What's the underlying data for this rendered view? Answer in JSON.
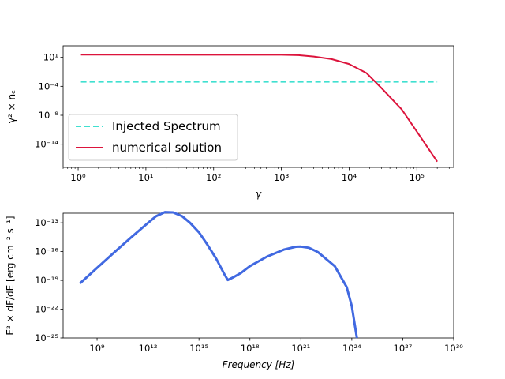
{
  "chart_data": [
    {
      "type": "line",
      "xscale": "log",
      "yscale": "log",
      "xlabel": "γ",
      "ylabel": "γ² × nₑ",
      "xlim": [
        0.6,
        350000
      ],
      "ylim": [
        1e-18,
        1000.0
      ],
      "xticks": [
        {
          "value": 1,
          "label": "10⁰"
        },
        {
          "value": 10,
          "label": "10¹"
        },
        {
          "value": 100,
          "label": "10²"
        },
        {
          "value": 1000,
          "label": "10³"
        },
        {
          "value": 10000,
          "label": "10⁴"
        },
        {
          "value": 100000,
          "label": "10⁵"
        }
      ],
      "yticks": [
        {
          "value": 10,
          "label": "10¹"
        },
        {
          "value": 0.0001,
          "label": "10⁻⁴"
        },
        {
          "value": 1e-09,
          "label": "10⁻⁹"
        },
        {
          "value": 1e-14,
          "label": "10⁻¹⁴"
        }
      ],
      "legend_position": "lower-left",
      "series": [
        {
          "name": "Injected Spectrum",
          "color": "#40e0d0",
          "style": "dashed",
          "x": [
            1.1,
            200000
          ],
          "y": [
            0.0006,
            0.0006
          ]
        },
        {
          "name": "numerical solution",
          "color": "#dc143c",
          "style": "solid",
          "x": [
            1.1,
            1000,
            1800,
            3000,
            5500,
            10000,
            18000,
            30000,
            60000,
            110000,
            200000
          ],
          "y": [
            30,
            28,
            24,
            14,
            5,
            0.7,
            0.02,
            5e-05,
            1e-08,
            3e-13,
            1e-17
          ]
        }
      ]
    },
    {
      "type": "line",
      "xscale": "log",
      "yscale": "log",
      "xlabel": "Frequency [Hz]",
      "ylabel": "E² × dF/dE [erg cm⁻² s⁻¹]",
      "xlim": [
        10000000.0,
        1e+30
      ],
      "ylim": [
        1e-25,
        1e-12
      ],
      "xticks": [
        {
          "value": 1000000000.0,
          "label": "10⁹"
        },
        {
          "value": 1000000000000.0,
          "label": "10¹²"
        },
        {
          "value": 1000000000000000.0,
          "label": "10¹⁵"
        },
        {
          "value": 1e+18,
          "label": "10¹⁸"
        },
        {
          "value": 1e+21,
          "label": "10²¹"
        },
        {
          "value": 1e+24,
          "label": "10²⁴"
        },
        {
          "value": 1e+27,
          "label": "10²⁷"
        },
        {
          "value": 1e+30,
          "label": "10³⁰"
        }
      ],
      "yticks": [
        {
          "value": 1e-13,
          "label": "10⁻¹³"
        },
        {
          "value": 1e-16,
          "label": "10⁻¹⁶"
        },
        {
          "value": 1e-19,
          "label": "10⁻¹⁹"
        },
        {
          "value": 1e-22,
          "label": "10⁻²²"
        },
        {
          "value": 1e-25,
          "label": "10⁻²⁵"
        }
      ],
      "series": [
        {
          "name": "",
          "color": "#4169e1",
          "style": "solid",
          "x": [
            100000000.0,
            1000000000.0,
            10000000000.0,
            100000000000.0,
            1000000000000.0,
            3000000000000.0,
            10000000000000.0,
            30000000000000.0,
            100000000000000.0,
            300000000000000.0,
            1000000000000000.0,
            3000000000000000.0,
            1e+16,
            3e+16,
            5e+16,
            1e+17,
            3e+17,
            1e+18,
            1e+19,
            1e+20,
            5e+20,
            1e+21,
            3e+21,
            1e+22,
            1e+23,
            5e+23,
            1e+24,
            2e+24
          ],
          "y": [
            5e-20,
            2e-18,
            8e-17,
            3e-15,
            1e-13,
            5e-13,
            1.3e-12,
            1.2e-12,
            5e-13,
            1e-13,
            1e-14,
            6e-16,
            2e-17,
            5e-19,
            1.1e-19,
            2e-19,
            6e-19,
            3e-18,
            3e-17,
            1.6e-16,
            3.2e-16,
            3.3e-16,
            2.5e-16,
            9e-17,
            3e-18,
            2e-20,
            2e-22,
            1e-25
          ]
        }
      ]
    }
  ]
}
